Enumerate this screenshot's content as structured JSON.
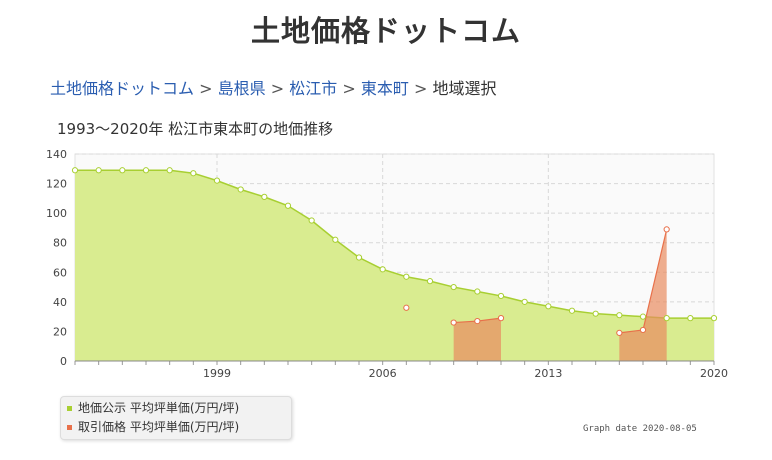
{
  "site": {
    "title": "土地価格ドットコム"
  },
  "breadcrumb": {
    "items": [
      "土地価格ドットコム",
      "島根県",
      "松江市",
      "東本町"
    ],
    "separator": ">",
    "current": "地域選択"
  },
  "chart_data": {
    "type": "area",
    "title": "1993〜2020年 松江市東本町の地価推移",
    "xlim": [
      1993,
      2020
    ],
    "ylim": [
      0,
      140
    ],
    "x_ticks": [
      "1999",
      "2006",
      "2013",
      "2020"
    ],
    "y_ticks": [
      "0",
      "20",
      "40",
      "60",
      "80",
      "100",
      "120",
      "140"
    ],
    "grid": true,
    "legend_position": "bottom-left",
    "series": [
      {
        "name": "地価公示 平均坪単価(万円/坪)",
        "color": "#a8cf32",
        "fill": "#d9ec90",
        "x": [
          1993,
          1994,
          1995,
          1996,
          1997,
          1998,
          1999,
          2000,
          2001,
          2002,
          2003,
          2004,
          2005,
          2006,
          2007,
          2008,
          2009,
          2010,
          2011,
          2012,
          2013,
          2014,
          2015,
          2016,
          2017,
          2018,
          2019,
          2020
        ],
        "y": [
          129,
          129,
          129,
          129,
          129,
          127,
          122,
          116,
          111,
          105,
          95,
          82,
          70,
          62,
          57,
          54,
          50,
          47,
          44,
          40,
          37,
          34,
          32,
          31,
          30,
          29,
          29,
          29
        ]
      },
      {
        "name": "取引価格 平均坪単価(万円/坪)",
        "color": "#e8704a",
        "fill": "rgba(232,140,95,0.7)",
        "x": [
          2007,
          2009,
          2010,
          2011,
          2016,
          2017,
          2018
        ],
        "y": [
          36,
          26,
          27,
          29,
          19,
          21,
          89
        ]
      }
    ]
  },
  "footer": {
    "graph_date": "Graph date 2020-08-05"
  }
}
